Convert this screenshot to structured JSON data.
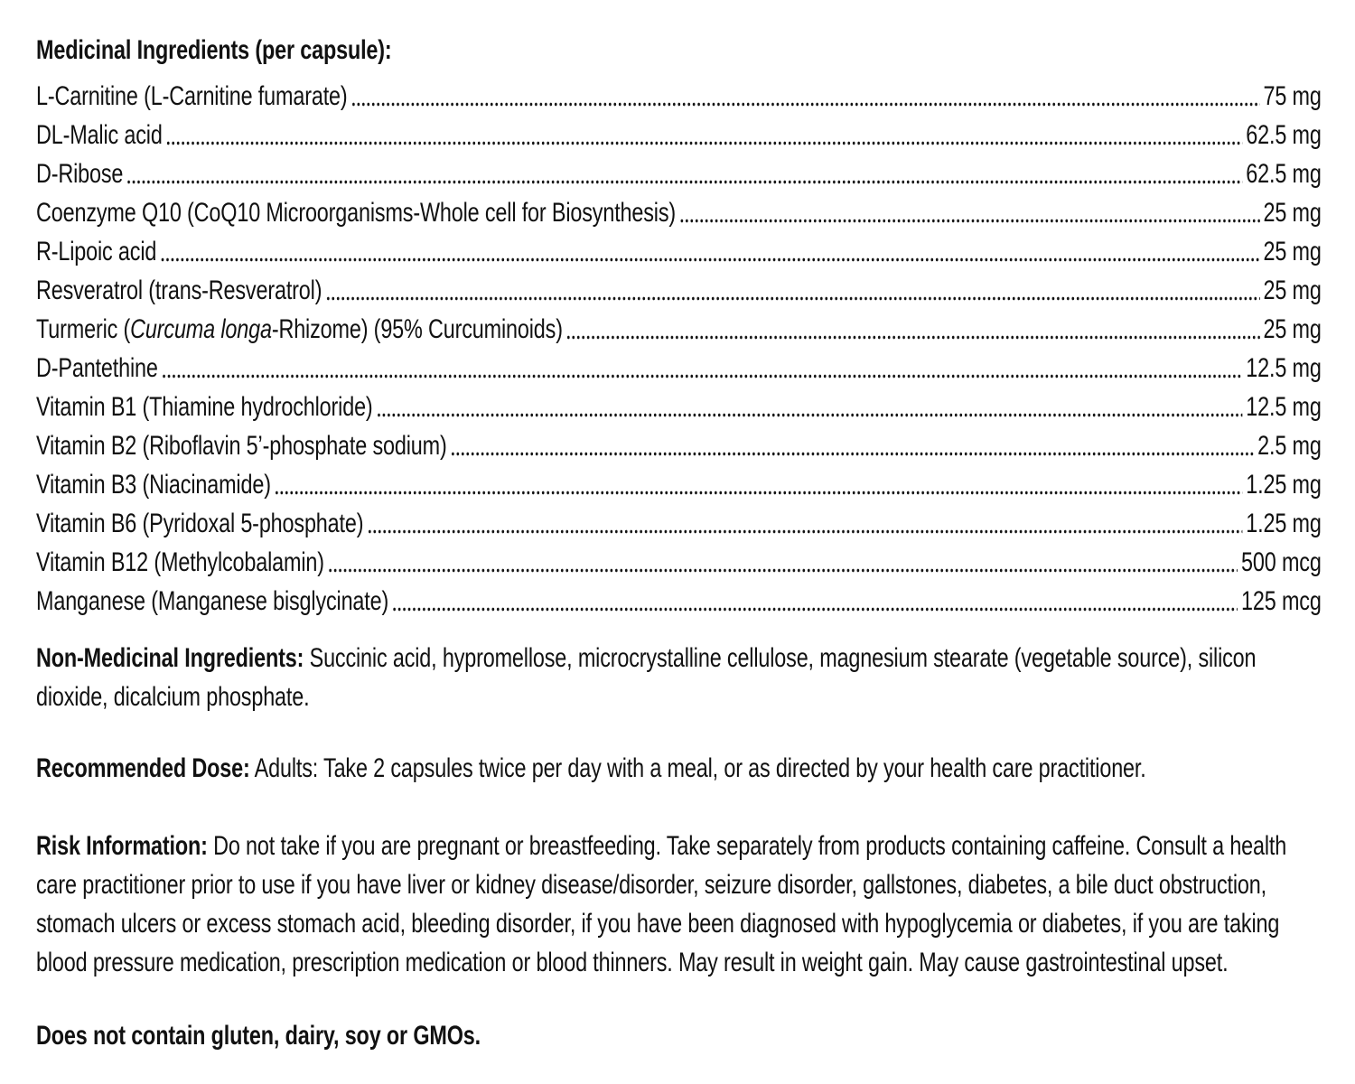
{
  "label": {
    "medicinal_header": "Medicinal Ingredients (per capsule):",
    "ingredients": [
      {
        "parts": [
          {
            "text": "L-Carnitine (L-Carnitine fumarate)",
            "italic": false
          }
        ],
        "amount": "75 mg"
      },
      {
        "parts": [
          {
            "text": "DL-Malic acid ",
            "italic": false
          }
        ],
        "amount": "62.5 mg"
      },
      {
        "parts": [
          {
            "text": "D-Ribose ",
            "italic": false
          }
        ],
        "amount": "62.5 mg"
      },
      {
        "parts": [
          {
            "text": "Coenzyme Q10 (CoQ10 Microorganisms-Whole cell for Biosynthesis)",
            "italic": false
          }
        ],
        "amount": "25 mg"
      },
      {
        "parts": [
          {
            "text": "R-Lipoic acid",
            "italic": false
          }
        ],
        "amount": "25 mg"
      },
      {
        "parts": [
          {
            "text": "Resveratrol (trans-Resveratrol) ",
            "italic": false
          }
        ],
        "amount": "25 mg"
      },
      {
        "parts": [
          {
            "text": "Turmeric (",
            "italic": false
          },
          {
            "text": "Curcuma longa",
            "italic": true
          },
          {
            "text": "-Rhizome) (95% Curcuminoids) ",
            "italic": false
          }
        ],
        "amount": "25 mg"
      },
      {
        "parts": [
          {
            "text": "D-Pantethine",
            "italic": false
          }
        ],
        "amount": "12.5 mg"
      },
      {
        "parts": [
          {
            "text": "Vitamin B1 (Thiamine hydrochloride) ",
            "italic": false
          }
        ],
        "amount": "12.5 mg"
      },
      {
        "parts": [
          {
            "text": "Vitamin B2 (Riboflavin 5’-phosphate sodium) ",
            "italic": false
          }
        ],
        "amount": "2.5 mg"
      },
      {
        "parts": [
          {
            "text": "Vitamin B3 (Niacinamide)",
            "italic": false
          }
        ],
        "amount": "1.25 mg"
      },
      {
        "parts": [
          {
            "text": "Vitamin B6 (Pyridoxal 5-phosphate)",
            "italic": false
          }
        ],
        "amount": "1.25 mg"
      },
      {
        "parts": [
          {
            "text": "Vitamin B12 (Methylcobalamin) ",
            "italic": false
          }
        ],
        "amount": "500 mcg"
      },
      {
        "parts": [
          {
            "text": "Manganese (Manganese bisglycinate) ",
            "italic": false
          }
        ],
        "amount": "125 mcg"
      }
    ],
    "non_medicinal": {
      "label": "Non-Medicinal Ingredients:",
      "text": "Succinic acid, hypromellose, microcrystalline cellulose, magnesium stearate (vegetable source), silicon dioxide, dicalcium phosphate."
    },
    "recommended_dose": {
      "label": "Recommended Dose:",
      "text": "Adults: Take 2 capsules twice per day with a meal, or as directed by your health care practitioner."
    },
    "risk_information": {
      "label": "Risk Information:",
      "text": "Do not take if you are pregnant or breastfeeding. Take separately from products containing caffeine. Consult a health care practitioner prior to use if you have liver or kidney disease/disorder, seizure disorder, gallstones, diabetes, a bile duct obstruction, stomach ulcers or excess stomach acid, bleeding disorder, if you have been diagnosed with hypoglycemia or diabetes, if you are taking blood pressure medication, prescription medication or blood thinners. May result in weight gain. May cause gastrointestinal upset."
    },
    "contains_statement": "Does not contain gluten, dairy, soy or GMOs.",
    "colors": {
      "text": "#111111",
      "background": "#ffffff"
    }
  }
}
